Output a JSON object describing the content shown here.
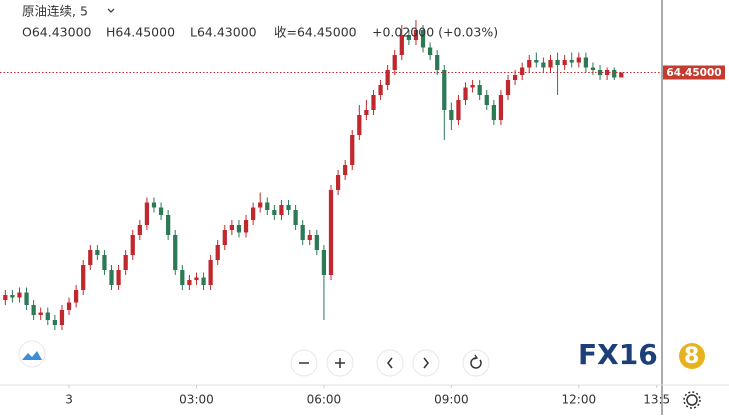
{
  "chart_data": {
    "type": "candlestick",
    "title": "原油连续, 5",
    "ohlc_labels": [
      "O64.43000",
      "H64.45000",
      "L64.43000",
      "收=64.45000",
      "+0.02000 (+0.03%)"
    ],
    "last_price": {
      "value": 64.45,
      "label": "64.45000"
    },
    "up_color": "#c0282d",
    "down_color": "#2b7a55",
    "x": [
      0,
      1,
      2,
      3,
      4,
      5,
      6,
      7,
      8,
      9,
      10,
      11,
      12,
      13,
      14,
      15,
      16,
      17,
      18,
      19,
      20,
      21,
      22,
      23,
      24,
      25,
      26,
      27,
      28,
      29,
      30,
      31,
      32,
      33,
      34,
      35,
      36,
      37,
      38,
      39,
      40,
      41,
      42,
      43,
      44,
      45,
      46,
      47,
      48,
      49,
      50,
      51,
      52,
      53,
      54,
      55,
      56,
      57,
      58,
      59,
      60,
      61,
      62,
      63,
      64,
      65,
      66,
      67,
      68,
      69,
      70,
      71,
      72,
      73,
      74,
      75,
      76,
      77,
      78,
      79,
      80,
      81,
      82,
      83,
      84,
      85,
      86,
      87
    ],
    "open": [
      63.54,
      63.56,
      63.55,
      63.57,
      63.52,
      63.48,
      63.49,
      63.46,
      63.44,
      63.5,
      63.53,
      63.58,
      63.68,
      63.74,
      63.72,
      63.66,
      63.6,
      63.66,
      63.72,
      63.8,
      63.84,
      63.93,
      63.91,
      63.88,
      63.8,
      63.66,
      63.6,
      63.62,
      63.63,
      63.6,
      63.7,
      63.76,
      63.82,
      63.84,
      63.81,
      63.86,
      63.91,
      63.93,
      63.9,
      63.88,
      63.92,
      63.9,
      63.84,
      63.78,
      63.8,
      63.74,
      63.64,
      63.98,
      64.04,
      64.08,
      64.2,
      64.28,
      64.3,
      64.36,
      64.4,
      64.46,
      64.52,
      64.6,
      64.58,
      64.62,
      64.55,
      64.52,
      64.46,
      64.3,
      64.26,
      64.34,
      64.39,
      64.4,
      64.36,
      64.32,
      64.26,
      64.36,
      64.42,
      64.44,
      64.47,
      64.5,
      64.49,
      64.47,
      64.5,
      64.48,
      64.5,
      64.49,
      64.51,
      64.47,
      64.46,
      64.44,
      64.46,
      64.43
    ],
    "high": [
      63.58,
      63.58,
      63.59,
      63.59,
      63.54,
      63.51,
      63.51,
      63.48,
      63.52,
      63.55,
      63.6,
      63.7,
      63.76,
      63.76,
      63.74,
      63.68,
      63.68,
      63.74,
      63.82,
      63.86,
      63.95,
      63.95,
      63.93,
      63.9,
      63.82,
      63.68,
      63.64,
      63.65,
      63.65,
      63.72,
      63.78,
      63.84,
      63.86,
      63.86,
      63.88,
      63.93,
      63.97,
      63.95,
      63.92,
      63.94,
      63.94,
      63.92,
      63.86,
      63.82,
      63.82,
      63.76,
      64.0,
      64.06,
      64.1,
      64.22,
      64.32,
      64.34,
      64.38,
      64.42,
      64.48,
      64.54,
      64.64,
      64.62,
      64.66,
      64.64,
      64.57,
      64.54,
      64.48,
      64.33,
      64.36,
      64.41,
      64.42,
      64.42,
      64.38,
      64.34,
      64.38,
      64.44,
      64.46,
      64.49,
      64.52,
      64.53,
      64.51,
      64.52,
      64.53,
      64.52,
      64.53,
      64.53,
      64.53,
      64.49,
      64.48,
      64.47,
      64.47,
      64.45
    ],
    "low": [
      63.52,
      63.53,
      63.53,
      63.5,
      63.46,
      63.46,
      63.44,
      63.42,
      63.42,
      63.48,
      63.51,
      63.56,
      63.66,
      63.7,
      63.64,
      63.58,
      63.58,
      63.64,
      63.7,
      63.78,
      63.82,
      63.89,
      63.86,
      63.78,
      63.64,
      63.58,
      63.58,
      63.6,
      63.58,
      63.58,
      63.68,
      63.74,
      63.8,
      63.79,
      63.79,
      63.84,
      63.89,
      63.88,
      63.86,
      63.86,
      63.88,
      63.82,
      63.76,
      63.76,
      63.72,
      63.46,
      63.62,
      63.96,
      64.02,
      64.06,
      64.18,
      64.26,
      64.28,
      64.34,
      64.38,
      64.44,
      64.5,
      64.56,
      64.56,
      64.53,
      64.5,
      64.44,
      64.18,
      64.22,
      64.24,
      64.32,
      64.37,
      64.34,
      64.3,
      64.24,
      64.24,
      64.34,
      64.4,
      64.42,
      64.45,
      64.47,
      64.45,
      64.45,
      64.36,
      64.46,
      64.47,
      64.47,
      64.45,
      64.44,
      64.42,
      64.42,
      64.42,
      64.43
    ],
    "close": [
      63.56,
      63.55,
      63.57,
      63.52,
      63.48,
      63.49,
      63.46,
      63.44,
      63.5,
      63.53,
      63.58,
      63.68,
      63.74,
      63.72,
      63.66,
      63.6,
      63.66,
      63.72,
      63.8,
      63.84,
      63.93,
      63.91,
      63.88,
      63.8,
      63.66,
      63.6,
      63.62,
      63.63,
      63.6,
      63.7,
      63.76,
      63.82,
      63.84,
      63.81,
      63.86,
      63.91,
      63.93,
      63.9,
      63.88,
      63.92,
      63.9,
      63.84,
      63.78,
      63.8,
      63.74,
      63.64,
      63.98,
      64.04,
      64.08,
      64.2,
      64.28,
      64.3,
      64.36,
      64.4,
      64.46,
      64.52,
      64.6,
      64.58,
      64.62,
      64.55,
      64.52,
      64.46,
      64.3,
      64.26,
      64.34,
      64.39,
      64.4,
      64.36,
      64.32,
      64.26,
      64.36,
      64.42,
      64.44,
      64.47,
      64.5,
      64.49,
      64.47,
      64.5,
      64.48,
      64.5,
      64.49,
      64.51,
      64.47,
      64.46,
      64.44,
      64.46,
      64.43,
      64.45
    ],
    "xlim": [
      -0.75,
      92.75
    ],
    "ylim": [
      63.2,
      64.74
    ],
    "xticks": [
      {
        "value": 9,
        "label": "3"
      },
      {
        "value": 27,
        "label": "03:00"
      },
      {
        "value": 45,
        "label": "06:00"
      },
      {
        "value": 63,
        "label": "09:00"
      },
      {
        "value": 81,
        "label": "12:00"
      },
      {
        "value": 92,
        "label": "13:5"
      }
    ]
  }
}
